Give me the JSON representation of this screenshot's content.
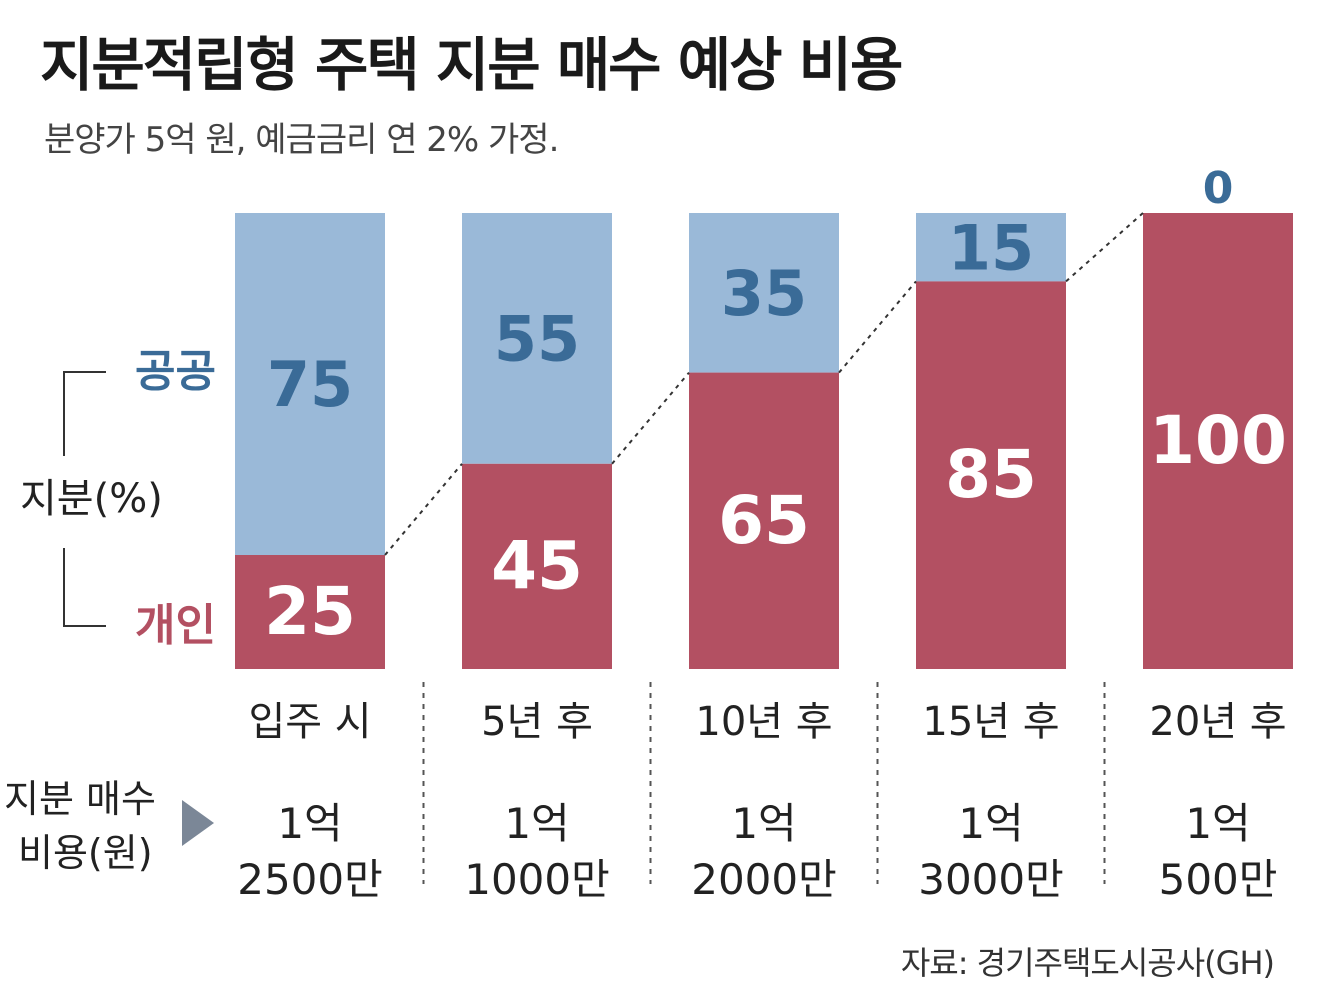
{
  "title": "지분적립형 주택 지분 매수 예상 비용",
  "subtitle": "분양가 5억 원, 예금금리 연 2% 가정.",
  "source": "자료: 경기주택도시공사(GH)",
  "legend": {
    "public_label": "공공",
    "private_label": "개인",
    "axis_label": "지분(%)"
  },
  "cost_label_line1": "지분 매수",
  "cost_label_line2": "비용(원)",
  "colors": {
    "public": "#9ab9d8",
    "private": "#b35062",
    "public_text": "#3a6b97",
    "private_text": "#b35062",
    "white_text": "#ffffff"
  },
  "chart_data": {
    "type": "bar",
    "stacked": true,
    "categories": [
      "입주 시",
      "5년 후",
      "10년 후",
      "15년 후",
      "20년 후"
    ],
    "series": [
      {
        "name": "개인",
        "values": [
          25,
          45,
          65,
          85,
          100
        ]
      },
      {
        "name": "공공",
        "values": [
          75,
          55,
          35,
          15,
          0
        ]
      }
    ],
    "ylabel": "지분(%)",
    "ylim": [
      0,
      100
    ],
    "costs": [
      [
        "1억",
        "2500만"
      ],
      [
        "1억",
        "1000만"
      ],
      [
        "1억",
        "2000만"
      ],
      [
        "1억",
        "3000만"
      ],
      [
        "1억",
        "500만"
      ]
    ]
  }
}
